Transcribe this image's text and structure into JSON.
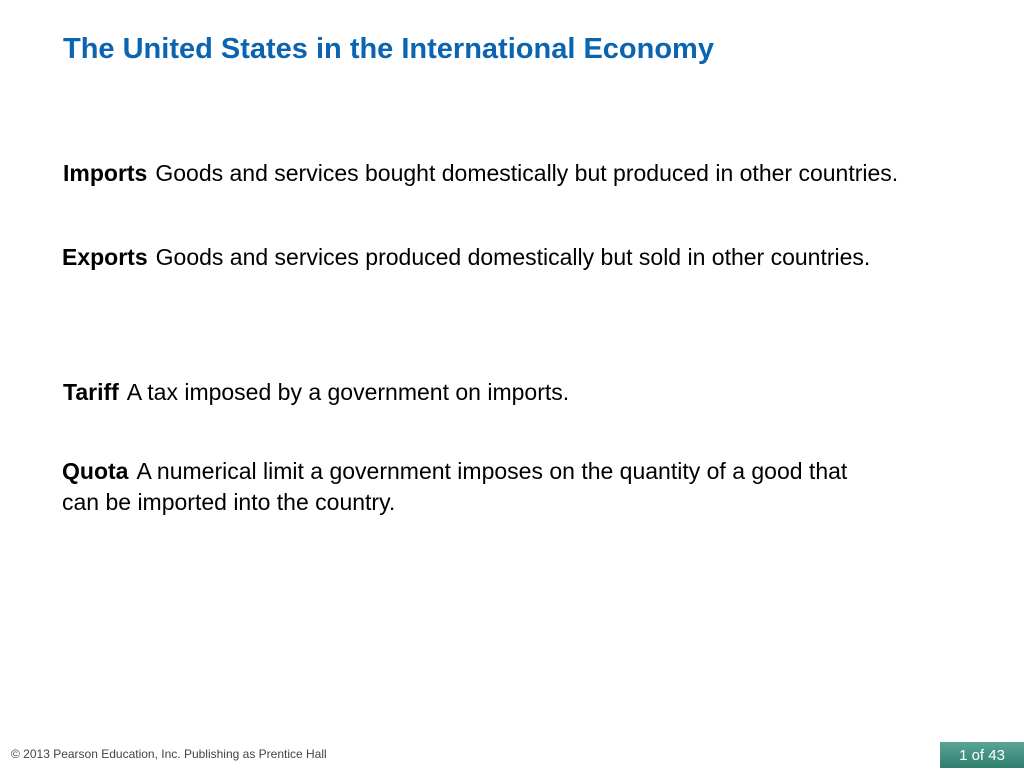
{
  "slide": {
    "title": "The United States in the International Economy",
    "definitions": [
      {
        "term": "Imports",
        "text": "Goods and services bought domestically but produced in other countries."
      },
      {
        "term": "Exports",
        "text": "Goods and services produced domestically but sold in other countries."
      },
      {
        "term": "Tariff",
        "text": "A tax imposed by a government on imports."
      },
      {
        "term": "Quota",
        "text": "A numerical limit a government imposes on the quantity of a good that",
        "text_line2": "can be imported into the country."
      }
    ]
  },
  "footer": {
    "copyright": "© 2013 Pearson Education, Inc. Publishing as Prentice Hall",
    "page_indicator": "1 of 43"
  },
  "colors": {
    "title": "#0b64b0",
    "badge": "#3d8b7b"
  }
}
